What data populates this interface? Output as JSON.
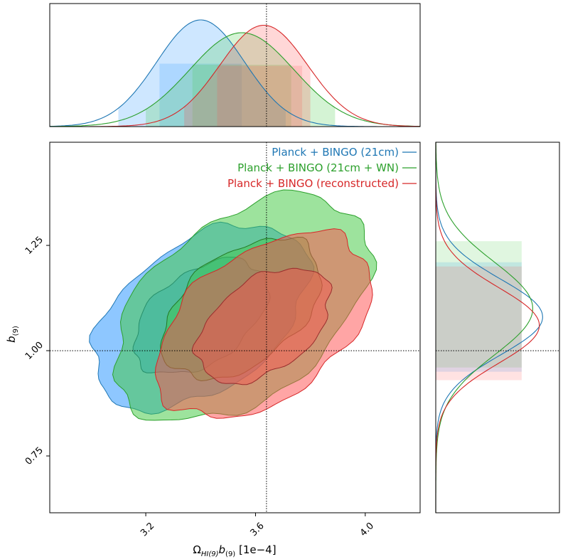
{
  "chart_data": {
    "type": "triangle-corner-plot",
    "x_param": "ΩHI(9)b(9)",
    "y_param": "b(9)",
    "xlabel": {
      "main": "Ω",
      "sub": "HI(9)",
      "b": "b",
      "bsub": "(9)",
      "unit": "[1e−4]"
    },
    "ylabel": {
      "main": "b",
      "sub": "(9)"
    },
    "xlim": [
      2.85,
      4.2
    ],
    "ylim": [
      0.615,
      1.495
    ],
    "xticks": [
      "3.2",
      "3.6",
      "4.0"
    ],
    "xtick_values": [
      3.2,
      3.6,
      4.0
    ],
    "yticks": [
      "0.75",
      "1.00",
      "1.25"
    ],
    "ytick_values": [
      0.75,
      1.0,
      1.25
    ],
    "fiducial": {
      "x": 3.64,
      "y": 1.0
    },
    "legend_position": "top-right",
    "series": [
      {
        "name": "Planck + BINGO (21cm)",
        "color": "#1f77b4",
        "fill": "#1e90ff",
        "mean_x": 3.4,
        "sigma_x": 0.16,
        "ci68_x": [
          3.25,
          3.55
        ],
        "ci95_x": [
          3.1,
          3.71
        ],
        "mean_y": 1.08,
        "sigma_y": 0.09,
        "ci68_y": [
          0.99,
          1.2
        ],
        "ci95_y": [
          0.95,
          1.21
        ]
      },
      {
        "name": "Planck + BINGO (21cm + WN)",
        "color": "#2ca02c",
        "fill": "#3cc83c",
        "mean_x": 3.55,
        "sigma_x": 0.19,
        "ci68_x": [
          3.37,
          3.73
        ],
        "ci95_x": [
          3.2,
          3.89
        ],
        "mean_y": 1.1,
        "sigma_y": 0.11,
        "ci68_y": [
          0.99,
          1.21
        ],
        "ci95_y": [
          0.96,
          1.26
        ]
      },
      {
        "name": "Planck + BINGO (reconstructed)",
        "color": "#d62728",
        "fill": "#ff4b4b",
        "mean_x": 3.63,
        "sigma_x": 0.16,
        "ci68_x": [
          3.46,
          3.77
        ],
        "ci95_x": [
          3.34,
          3.8
        ],
        "mean_y": 1.06,
        "sigma_y": 0.09,
        "ci68_y": [
          0.93,
          1.19
        ],
        "ci95_y": [
          0.93,
          1.2
        ]
      }
    ]
  }
}
